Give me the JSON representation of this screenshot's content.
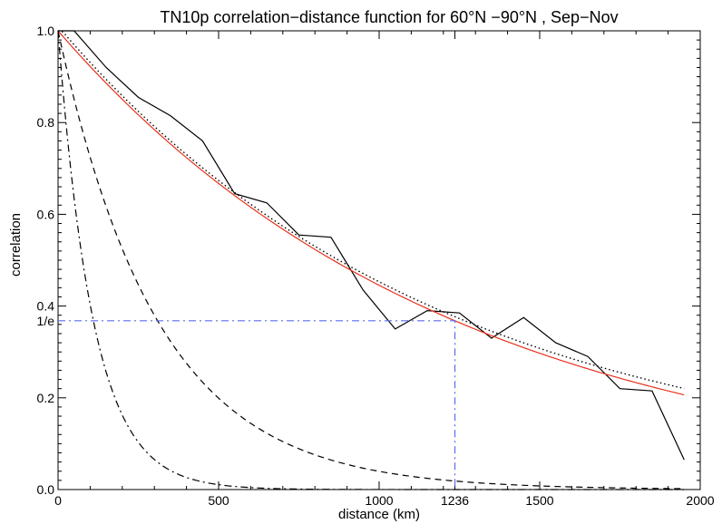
{
  "chart_data": {
    "type": "line",
    "title": "TN10p correlation−distance function for 60°N −90°N  , Sep−Nov",
    "xlabel": "distance (km)",
    "ylabel": "correlation",
    "xlim": [
      0,
      2000
    ],
    "ylim": [
      0,
      1.0
    ],
    "x_ticks": [
      {
        "value": 0,
        "label": "0"
      },
      {
        "value": 500,
        "label": "500"
      },
      {
        "value": 1000,
        "label": "1000"
      },
      {
        "value": 1236,
        "label": "1236"
      },
      {
        "value": 1500,
        "label": "1500"
      },
      {
        "value": 2000,
        "label": "2000"
      }
    ],
    "y_ticks": [
      {
        "value": 0.0,
        "label": "0.0"
      },
      {
        "value": 0.2,
        "label": "0.2"
      },
      {
        "value": 0.4,
        "label": "0.4"
      },
      {
        "value": 0.6,
        "label": "0.6"
      },
      {
        "value": 0.8,
        "label": "0.8"
      },
      {
        "value": 1.0,
        "label": "1.0"
      }
    ],
    "marker": {
      "x": 1236,
      "y": 0.368,
      "y_label": "1/e",
      "color": "#5a6cf0"
    },
    "grid": false,
    "series": [
      {
        "style": "solid",
        "color": "#000000",
        "x": [
          0,
          50,
          150,
          250,
          350,
          450,
          550,
          650,
          750,
          850,
          950,
          1050,
          1150,
          1250,
          1350,
          1450,
          1550,
          1650,
          1750,
          1850,
          1950
        ],
        "y": [
          1.02,
          1.02,
          0.92,
          0.855,
          0.815,
          0.76,
          0.645,
          0.625,
          0.555,
          0.55,
          0.435,
          0.35,
          0.39,
          0.385,
          0.33,
          0.375,
          0.32,
          0.29,
          0.22,
          0.215,
          0.065
        ]
      },
      {
        "style": "solid",
        "color": "#e8301c",
        "function": "exp",
        "scale": 1236,
        "x_range": [
          0,
          1950
        ]
      },
      {
        "style": "dotted",
        "color": "#000000",
        "function": "exp",
        "scale": 1190,
        "amplitude": 0.98,
        "offset": 0.03,
        "x_range": [
          0,
          1950
        ]
      },
      {
        "style": "dashed",
        "color": "#000000",
        "function": "exp",
        "scale": 310,
        "x_range": [
          0,
          1950
        ]
      },
      {
        "style": "dashdot",
        "color": "#000000",
        "function": "exp",
        "scale": 110,
        "x_range": [
          0,
          1950
        ]
      }
    ]
  }
}
